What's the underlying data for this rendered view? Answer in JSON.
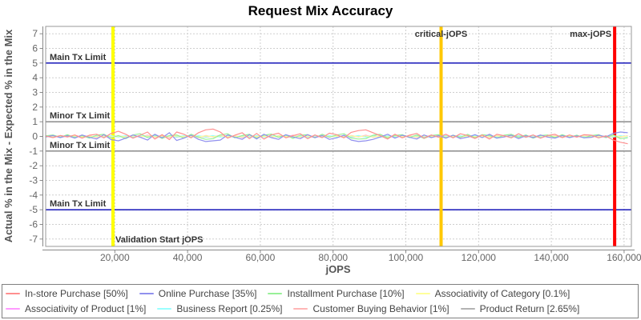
{
  "title": "Request Mix Accuracy",
  "x_axis": {
    "label": "jOPS",
    "ticks": [
      {
        "v": 20000,
        "label": "20,000"
      },
      {
        "v": 40000,
        "label": "40,000"
      },
      {
        "v": 60000,
        "label": "60,000"
      },
      {
        "v": 80000,
        "label": "80,000"
      },
      {
        "v": 100000,
        "label": "100,000"
      },
      {
        "v": 120000,
        "label": "120,000"
      },
      {
        "v": 140000,
        "label": "140,000"
      },
      {
        "v": 160000,
        "label": "160,000"
      }
    ]
  },
  "y_axis": {
    "label": "Actual % in the Mix - Expected % in the Mix",
    "ticks": [
      7,
      6,
      5,
      4,
      3,
      2,
      1,
      0,
      -1,
      -2,
      -3,
      -4,
      -5,
      -6,
      -7
    ]
  },
  "limit_lines": [
    {
      "label": "Main Tx Limit",
      "y": 5,
      "color": "#0000b3"
    },
    {
      "label": "Minor Tx Limit",
      "y": 1,
      "color": "#808080"
    },
    {
      "label": "Minor Tx Limit",
      "y": -1,
      "color": "#808080"
    },
    {
      "label": "Main Tx Limit",
      "y": -5,
      "color": "#0000b3"
    }
  ],
  "marker_lines": [
    {
      "name": "validation-start",
      "label": "Validation Start jOPS",
      "x": 19500,
      "color": "#ffff00",
      "label_anchor": "bottom-right"
    },
    {
      "name": "critical-jops",
      "label": "critical-jOPS",
      "x": 109700,
      "color": "#ffc800",
      "label_anchor": "top-center"
    },
    {
      "name": "max-jops",
      "label": "max-jOPS",
      "x": 157400,
      "color": "#ff0000",
      "label_anchor": "top-left"
    }
  ],
  "chart_data": {
    "type": "line",
    "xlabel": "jOPS",
    "ylabel": "Actual % in the Mix - Expected % in the Mix",
    "xlim": [
      1000,
      162000
    ],
    "ylim": [
      -7.5,
      7.5
    ],
    "grid": true,
    "legend_position": "bottom",
    "x_start": 1000,
    "x_step": 2000,
    "series": [
      {
        "name": "in-store-purchase",
        "label": "In-store Purchase [50%]",
        "color": "#ff8f8f",
        "values": [
          0.02,
          -0.08,
          0.06,
          -0.04,
          0.1,
          -0.12,
          0.08,
          0.15,
          -0.1,
          0.2,
          0.35,
          0.15,
          -0.12,
          0.08,
          0.3,
          -0.18,
          0.12,
          -0.22,
          0.3,
          0.15,
          -0.1,
          0.25,
          0.45,
          0.5,
          0.3,
          -0.12,
          0.08,
          0.25,
          -0.15,
          0.2,
          -0.18,
          0.1,
          0.22,
          -0.1,
          0.05,
          0.18,
          -0.15,
          0.1,
          -0.08,
          0.22,
          0.12,
          -0.1,
          0.28,
          0.4,
          0.45,
          0.25,
          0.05,
          -0.18,
          0.15,
          -0.1,
          0.08,
          0.2,
          -0.12,
          0.1,
          -0.06,
          0.15,
          -0.1,
          0.18,
          0.06,
          -0.14,
          0.1,
          -0.18,
          0.14,
          0.05,
          -0.1,
          0.18,
          -0.06,
          0.1,
          -0.12,
          0.06,
          0.14,
          -0.08,
          0.1,
          -0.05,
          0.12,
          0.08,
          -0.1,
          0.04,
          -0.25,
          -0.4,
          -0.5
        ]
      },
      {
        "name": "online-purchase",
        "label": "Online Purchase [35%]",
        "color": "#9090ee",
        "values": [
          -0.03,
          0.06,
          -0.08,
          0.05,
          -0.12,
          0.1,
          -0.06,
          -0.18,
          0.12,
          -0.22,
          -0.3,
          -0.12,
          0.1,
          -0.06,
          -0.25,
          0.15,
          -0.1,
          0.25,
          -0.28,
          -0.12,
          0.08,
          -0.2,
          -0.35,
          -0.3,
          -0.25,
          0.1,
          -0.06,
          -0.2,
          0.12,
          -0.18,
          0.15,
          -0.08,
          -0.2,
          0.12,
          -0.04,
          -0.15,
          0.12,
          -0.08,
          0.06,
          -0.2,
          -0.1,
          0.08,
          -0.25,
          -0.35,
          -0.3,
          -0.2,
          -0.04,
          0.15,
          -0.12,
          0.08,
          -0.06,
          -0.18,
          0.1,
          -0.08,
          0.05,
          -0.12,
          0.08,
          -0.15,
          -0.05,
          0.12,
          -0.08,
          0.15,
          -0.12,
          -0.04,
          0.08,
          -0.15,
          0.05,
          -0.08,
          0.1,
          -0.05,
          -0.12,
          0.06,
          -0.08,
          0.04,
          -0.1,
          -0.06,
          0.08,
          -0.03,
          0.2,
          0.3,
          0.25
        ]
      },
      {
        "name": "installment-purchase",
        "label": "Installment Purchase [10%]",
        "color": "#98f098",
        "values": [
          0.04,
          0.1,
          -0.06,
          0.12,
          -0.08,
          0.05,
          -0.12,
          0.08,
          0.15,
          -0.1,
          0.06,
          -0.15,
          0.1,
          0.18,
          -0.08,
          0.12,
          -0.14,
          0.06,
          0.1,
          -0.12,
          0.15,
          -0.06,
          -0.2,
          -0.15,
          0.1,
          0.18,
          -0.1,
          0.06,
          0.14,
          -0.12,
          0.08,
          0.16,
          -0.06,
          0.1,
          -0.14,
          0.08,
          0.12,
          -0.1,
          0.15,
          -0.06,
          0.1,
          0.18,
          -0.12,
          -0.18,
          -0.15,
          0.08,
          0.14,
          -0.1,
          0.06,
          0.12,
          -0.08,
          0.1,
          -0.14,
          0.06,
          0.12,
          -0.1,
          0.08,
          -0.06,
          0.14,
          -0.1,
          0.12,
          0.06,
          -0.12,
          0.08,
          0.14,
          -0.06,
          0.1,
          -0.12,
          0.06,
          0.1,
          -0.08,
          0.12,
          -0.06,
          0.08,
          -0.1,
          0.06,
          0.12,
          -0.08,
          0.1,
          -0.15,
          -0.1
        ]
      },
      {
        "name": "associativity-of-category",
        "label": "Associativity of Category [0.1%]",
        "color": "#ffff9a",
        "values": [
          0.02,
          -0.03,
          0.03,
          -0.02,
          0.04,
          -0.03,
          0.02,
          -0.04,
          0.03,
          -0.02,
          0.02,
          -0.03,
          0.03,
          -0.02,
          0.04,
          -0.03,
          0.02,
          -0.04,
          0.03,
          -0.02,
          0.02,
          -0.03,
          0.03,
          -0.02,
          0.04,
          -0.03,
          0.02,
          -0.04,
          0.03,
          -0.02,
          0.02,
          -0.03,
          0.03,
          -0.02,
          0.04,
          -0.03,
          0.02,
          -0.04,
          0.03,
          -0.02,
          0.02,
          -0.03,
          0.03,
          -0.02,
          0.04,
          -0.03,
          0.02,
          -0.04,
          0.03,
          -0.02,
          0.02,
          -0.03,
          0.03,
          -0.02,
          0.04,
          -0.03,
          0.02,
          -0.04,
          0.03,
          -0.02,
          0.02,
          -0.03,
          0.03,
          -0.02,
          0.04,
          -0.03,
          0.02,
          -0.04,
          0.03,
          -0.02,
          0.02,
          -0.03,
          0.03,
          -0.02,
          0.04,
          -0.03,
          0.02,
          -0.04,
          0.03,
          -0.02,
          0.02
        ]
      },
      {
        "name": "associativity-of-product",
        "label": "Associativity of Product [1%]",
        "color": "#ff9aff",
        "values": [
          0.03,
          -0.05,
          0.04,
          -0.03,
          0.06,
          -0.04,
          0.03,
          -0.06,
          0.05,
          -0.03,
          0.03,
          -0.05,
          0.04,
          -0.03,
          0.06,
          -0.04,
          0.03,
          -0.06,
          0.05,
          -0.03,
          0.03,
          -0.05,
          0.04,
          -0.03,
          0.06,
          -0.04,
          0.03,
          -0.06,
          0.05,
          -0.03,
          0.03,
          -0.05,
          0.04,
          -0.03,
          0.06,
          -0.04,
          0.03,
          -0.06,
          0.05,
          -0.03,
          0.03,
          -0.05,
          0.04,
          -0.03,
          0.06,
          -0.04,
          0.03,
          -0.06,
          0.05,
          -0.03,
          0.03,
          -0.05,
          0.04,
          -0.03,
          0.06,
          -0.04,
          0.03,
          -0.06,
          0.05,
          -0.03,
          0.03,
          -0.05,
          0.04,
          -0.03,
          0.06,
          -0.04,
          0.03,
          -0.06,
          0.05,
          -0.03,
          0.03,
          -0.05,
          0.04,
          -0.03,
          0.06,
          -0.04,
          0.03,
          -0.06,
          0.05,
          -0.03,
          0.03
        ]
      },
      {
        "name": "business-report",
        "label": "Business Report [0.25%]",
        "color": "#9affff",
        "values": [
          -0.04,
          0.05,
          -0.03,
          0.06,
          -0.05,
          0.03,
          -0.06,
          0.04,
          -0.03,
          0.05,
          -0.04,
          0.05,
          -0.03,
          0.06,
          -0.05,
          0.03,
          -0.06,
          0.04,
          -0.03,
          0.05,
          -0.04,
          0.05,
          -0.03,
          0.06,
          -0.05,
          0.03,
          -0.06,
          0.04,
          -0.03,
          0.05,
          -0.04,
          0.05,
          -0.03,
          0.06,
          -0.05,
          0.03,
          -0.06,
          0.04,
          -0.03,
          0.05,
          -0.04,
          0.05,
          -0.03,
          0.06,
          -0.05,
          0.03,
          -0.06,
          0.04,
          -0.03,
          0.05,
          -0.04,
          0.05,
          -0.03,
          0.06,
          -0.05,
          0.03,
          -0.06,
          0.04,
          -0.03,
          0.05,
          -0.04,
          0.05,
          -0.03,
          0.06,
          -0.05,
          0.03,
          -0.06,
          0.04,
          -0.03,
          0.05,
          -0.04,
          0.05,
          -0.03,
          0.06,
          -0.05,
          0.03,
          -0.06,
          0.04,
          -0.03,
          0.05,
          -0.04
        ]
      },
      {
        "name": "customer-buying-behavior",
        "label": "Customer Buying Behavior [1%]",
        "color": "#ffb6b6",
        "values": [
          0.05,
          -0.07,
          0.06,
          -0.04,
          0.08,
          -0.06,
          0.04,
          -0.08,
          0.07,
          -0.05,
          0.05,
          -0.07,
          0.06,
          -0.04,
          0.08,
          -0.06,
          0.04,
          -0.08,
          0.07,
          -0.05,
          0.05,
          -0.07,
          0.06,
          -0.04,
          0.08,
          -0.06,
          0.04,
          -0.08,
          0.07,
          -0.05,
          0.05,
          -0.07,
          0.06,
          -0.04,
          0.08,
          -0.06,
          0.04,
          -0.08,
          0.07,
          -0.05,
          0.05,
          -0.07,
          0.06,
          -0.04,
          0.08,
          -0.06,
          0.04,
          -0.08,
          0.07,
          -0.05,
          0.05,
          -0.07,
          0.06,
          -0.04,
          0.08,
          -0.06,
          0.04,
          -0.08,
          0.07,
          -0.05,
          0.05,
          -0.07,
          0.06,
          -0.04,
          0.08,
          -0.06,
          0.04,
          -0.08,
          0.07,
          -0.05,
          0.05,
          -0.07,
          0.06,
          -0.04,
          0.08,
          -0.06,
          0.04,
          -0.08,
          0.07,
          -0.05,
          0.05
        ]
      },
      {
        "name": "product-return",
        "label": "Product Return [2.65%]",
        "color": "#b3b3b3",
        "values": [
          -0.03,
          0.04,
          -0.05,
          0.03,
          -0.04,
          0.05,
          -0.03,
          0.04,
          -0.05,
          0.03,
          -0.03,
          0.04,
          -0.05,
          0.03,
          -0.04,
          0.05,
          -0.03,
          0.04,
          -0.05,
          0.03,
          -0.03,
          0.04,
          -0.05,
          0.03,
          -0.04,
          0.05,
          -0.03,
          0.04,
          -0.05,
          0.03,
          -0.03,
          0.04,
          -0.05,
          0.03,
          -0.04,
          0.05,
          -0.03,
          0.04,
          -0.05,
          0.03,
          -0.03,
          0.04,
          -0.05,
          0.03,
          -0.04,
          0.05,
          -0.03,
          0.04,
          -0.05,
          0.03,
          -0.03,
          0.04,
          -0.05,
          0.03,
          -0.04,
          0.05,
          -0.03,
          0.04,
          -0.05,
          0.03,
          -0.03,
          0.04,
          -0.05,
          0.03,
          -0.04,
          0.05,
          -0.03,
          0.04,
          -0.05,
          0.03,
          -0.03,
          0.04,
          -0.05,
          0.03,
          -0.04,
          0.05,
          -0.03,
          0.04,
          -0.05,
          0.03,
          -0.03
        ]
      }
    ]
  }
}
